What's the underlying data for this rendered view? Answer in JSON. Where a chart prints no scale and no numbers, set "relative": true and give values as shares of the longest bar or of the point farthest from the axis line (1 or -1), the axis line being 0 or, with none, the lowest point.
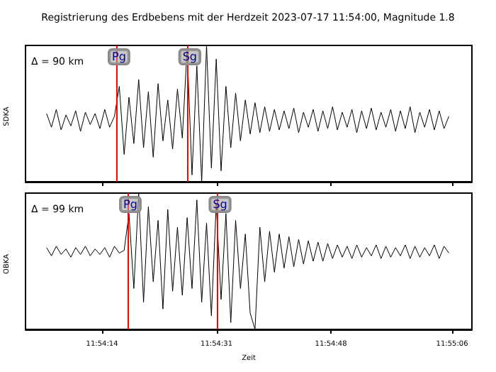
{
  "chart_data": [
    {
      "type": "line",
      "title": "Registrierung des Erdbebens mit der Herdzeit 2023-07-17 11:54:00, Magnitude 1.8",
      "ylabel": "SDKA",
      "annotations": [
        "Δ = 90 km"
      ],
      "relative": true,
      "marker": "none",
      "line_style": "solid",
      "tick_labels": false,
      "xlim": [
        11.90073,
        11.91915
      ],
      "xticks": [
        {
          "value": 11.903889,
          "label": null
        },
        {
          "value": 11.908611,
          "label": null
        },
        {
          "value": 11.913333,
          "label": null
        },
        {
          "value": 11.918333,
          "label": null
        }
      ],
      "ref_lines": [
        {
          "axis": "x",
          "value": 11.90447,
          "label": "Pg",
          "color": "#ff0000"
        },
        {
          "axis": "x",
          "value": 11.90739,
          "label": "Sg",
          "color": "#ff0000"
        }
      ],
      "x": [
        11.9016,
        11.9018,
        11.902,
        11.9022,
        11.9024,
        11.9026,
        11.9028,
        11.903,
        11.9032,
        11.9034,
        11.9036,
        11.9038,
        11.904,
        11.9042,
        11.9044,
        11.9046,
        11.9048,
        11.905,
        11.9052,
        11.9054,
        11.9056,
        11.9058,
        11.906,
        11.9062,
        11.9064,
        11.9066,
        11.9068,
        11.907,
        11.9072,
        11.9074,
        11.9076,
        11.9078,
        11.908,
        11.9082,
        11.9084,
        11.9086,
        11.9088,
        11.909,
        11.9092,
        11.9094,
        11.9096,
        11.9098,
        11.91,
        11.9102,
        11.9104,
        11.9106,
        11.9108,
        11.911,
        11.9112,
        11.9114,
        11.9116,
        11.9118,
        11.912,
        11.9122,
        11.9124,
        11.9126,
        11.9128,
        11.913,
        11.9132,
        11.9134,
        11.9136,
        11.9138,
        11.914,
        11.9142,
        11.9144,
        11.9146,
        11.9148,
        11.915,
        11.9152,
        11.9154,
        11.9156,
        11.9158,
        11.916,
        11.9162,
        11.9164,
        11.9166,
        11.9168,
        11.917,
        11.9172,
        11.9174,
        11.9176,
        11.9178,
        11.918,
        11.9182
      ],
      "series": [
        {
          "color": "#000000",
          "values": [
            0.5,
            0.4,
            0.53,
            0.38,
            0.49,
            0.41,
            0.52,
            0.37,
            0.51,
            0.42,
            0.5,
            0.39,
            0.53,
            0.4,
            0.48,
            0.7,
            0.2,
            0.62,
            0.28,
            0.75,
            0.25,
            0.66,
            0.18,
            0.72,
            0.3,
            0.6,
            0.24,
            0.68,
            0.32,
            0.98,
            0.05,
            0.85,
            0.0,
            1.0,
            0.1,
            0.9,
            0.08,
            0.7,
            0.25,
            0.65,
            0.3,
            0.6,
            0.35,
            0.58,
            0.36,
            0.55,
            0.37,
            0.53,
            0.38,
            0.52,
            0.39,
            0.54,
            0.36,
            0.51,
            0.4,
            0.53,
            0.37,
            0.52,
            0.39,
            0.55,
            0.38,
            0.51,
            0.4,
            0.53,
            0.36,
            0.52,
            0.39,
            0.54,
            0.38,
            0.51,
            0.4,
            0.53,
            0.37,
            0.52,
            0.39,
            0.55,
            0.36,
            0.51,
            0.4,
            0.53,
            0.38,
            0.52,
            0.39,
            0.48
          ]
        }
      ]
    },
    {
      "type": "line",
      "xlabel": "Zeit",
      "ylabel": "OBKA",
      "annotations": [
        "Δ = 99 km"
      ],
      "relative": true,
      "marker": "none",
      "line_style": "solid",
      "tick_labels": "x",
      "xlim": [
        11.90073,
        11.91915
      ],
      "xticks": [
        {
          "value": 11.903889,
          "label": "11:54:14"
        },
        {
          "value": 11.908611,
          "label": "11:54:31"
        },
        {
          "value": 11.913333,
          "label": "11:54:48"
        },
        {
          "value": 11.918333,
          "label": "11:55:06"
        }
      ],
      "ref_lines": [
        {
          "axis": "x",
          "value": 11.90494,
          "label": "Pg",
          "color": "#ff0000"
        },
        {
          "axis": "x",
          "value": 11.90864,
          "label": "Sg",
          "color": "#ff0000"
        }
      ],
      "x": [
        11.9016,
        11.9018,
        11.902,
        11.9022,
        11.9024,
        11.9026,
        11.9028,
        11.903,
        11.9032,
        11.9034,
        11.9036,
        11.9038,
        11.904,
        11.9042,
        11.9044,
        11.9046,
        11.9048,
        11.905,
        11.9052,
        11.9054,
        11.9056,
        11.9058,
        11.906,
        11.9062,
        11.9064,
        11.9066,
        11.9068,
        11.907,
        11.9072,
        11.9074,
        11.9076,
        11.9078,
        11.908,
        11.9082,
        11.9084,
        11.9086,
        11.9088,
        11.909,
        11.9092,
        11.9094,
        11.9096,
        11.9098,
        11.91,
        11.9102,
        11.9104,
        11.9106,
        11.9108,
        11.911,
        11.9112,
        11.9114,
        11.9116,
        11.9118,
        11.912,
        11.9122,
        11.9124,
        11.9126,
        11.9128,
        11.913,
        11.9132,
        11.9134,
        11.9136,
        11.9138,
        11.914,
        11.9142,
        11.9144,
        11.9146,
        11.9148,
        11.915,
        11.9152,
        11.9154,
        11.9156,
        11.9158,
        11.916,
        11.9162,
        11.9164,
        11.9166,
        11.9168,
        11.917,
        11.9172,
        11.9174,
        11.9176,
        11.9178,
        11.918,
        11.9182
      ],
      "series": [
        {
          "color": "#000000",
          "values": [
            0.6,
            0.54,
            0.61,
            0.55,
            0.59,
            0.53,
            0.6,
            0.55,
            0.61,
            0.54,
            0.59,
            0.55,
            0.6,
            0.53,
            0.61,
            0.56,
            0.58,
            0.85,
            0.3,
            1.0,
            0.2,
            0.9,
            0.35,
            0.8,
            0.15,
            0.88,
            0.28,
            0.75,
            0.25,
            0.82,
            0.3,
            0.95,
            0.2,
            0.78,
            0.1,
            0.92,
            0.22,
            0.85,
            0.05,
            0.8,
            0.3,
            0.7,
            0.12,
            0.0,
            0.75,
            0.35,
            0.72,
            0.42,
            0.7,
            0.45,
            0.68,
            0.46,
            0.66,
            0.48,
            0.65,
            0.5,
            0.64,
            0.5,
            0.63,
            0.52,
            0.62,
            0.53,
            0.61,
            0.52,
            0.62,
            0.53,
            0.6,
            0.54,
            0.62,
            0.52,
            0.61,
            0.53,
            0.6,
            0.54,
            0.62,
            0.52,
            0.61,
            0.53,
            0.6,
            0.54,
            0.62,
            0.52,
            0.61,
            0.56
          ]
        }
      ]
    }
  ]
}
